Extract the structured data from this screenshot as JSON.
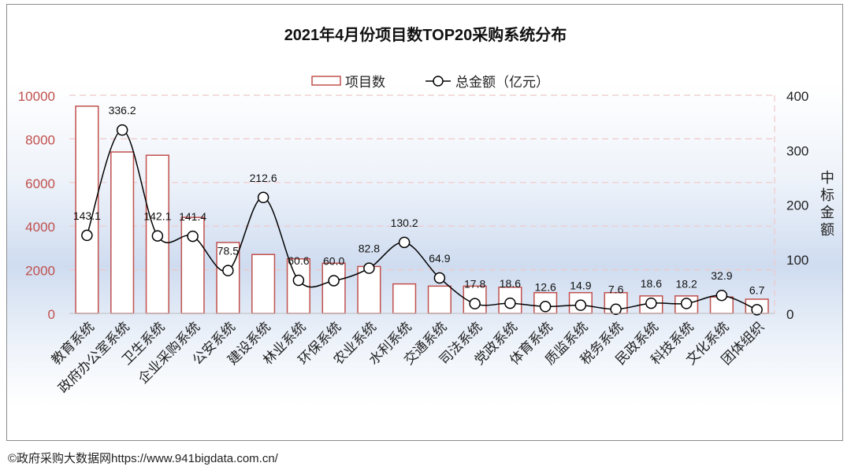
{
  "chart_data": {
    "type": "bar+line",
    "title": "2021年4月份项目数TOP20采购系统分布",
    "categories": [
      "教育系统",
      "政府办公室系统",
      "卫生系统",
      "企业采购系统",
      "公安系统",
      "建设系统",
      "林业系统",
      "环保系统",
      "农业系统",
      "水利系统",
      "交通系统",
      "司法系统",
      "党政系统",
      "体育系统",
      "质监系统",
      "税务系统",
      "民政系统",
      "科技系统",
      "文化系统",
      "团体组织"
    ],
    "series": [
      {
        "name": "项目数",
        "type": "bar",
        "axis": "left",
        "values": [
          9500,
          7400,
          7250,
          4400,
          3250,
          2700,
          2500,
          2300,
          2150,
          1350,
          1250,
          1250,
          1200,
          950,
          950,
          950,
          800,
          800,
          750,
          650
        ]
      },
      {
        "name": "总金额（亿元）",
        "type": "line",
        "axis": "right",
        "values": [
          143.1,
          336.2,
          142.1,
          141.4,
          78.5,
          212.6,
          60.6,
          60.0,
          82.8,
          130.2,
          64.9,
          17.8,
          18.6,
          12.6,
          14.9,
          7.6,
          18.6,
          18.2,
          32.9,
          6.7
        ],
        "labels": [
          "143.1",
          "336.2",
          "142.1",
          "141.4",
          "78.5",
          "212.6",
          "60.6",
          "60.0",
          "82.8",
          "130.2",
          "64.9",
          "17.8",
          "18.6",
          "12.6",
          "14.9",
          "7.6",
          "18.6",
          "18.2",
          "32.9",
          "6.7"
        ]
      }
    ],
    "y_left": {
      "ticks": [
        "0",
        "2000",
        "4000",
        "6000",
        "8000",
        "10000"
      ],
      "ylim": [
        0,
        10000
      ]
    },
    "y_right": {
      "label": "中标金额",
      "ticks": [
        "0",
        "100",
        "200",
        "300",
        "400"
      ],
      "ylim": [
        0,
        400
      ]
    },
    "legend_position": "top-center",
    "colors": {
      "bar": "#c0504d",
      "line": "#000000",
      "left_axis_text": "#c0504d",
      "grid": "#f0c8c8"
    }
  },
  "footer": "©政府采购大数据网https://www.941bigdata.com.cn/"
}
